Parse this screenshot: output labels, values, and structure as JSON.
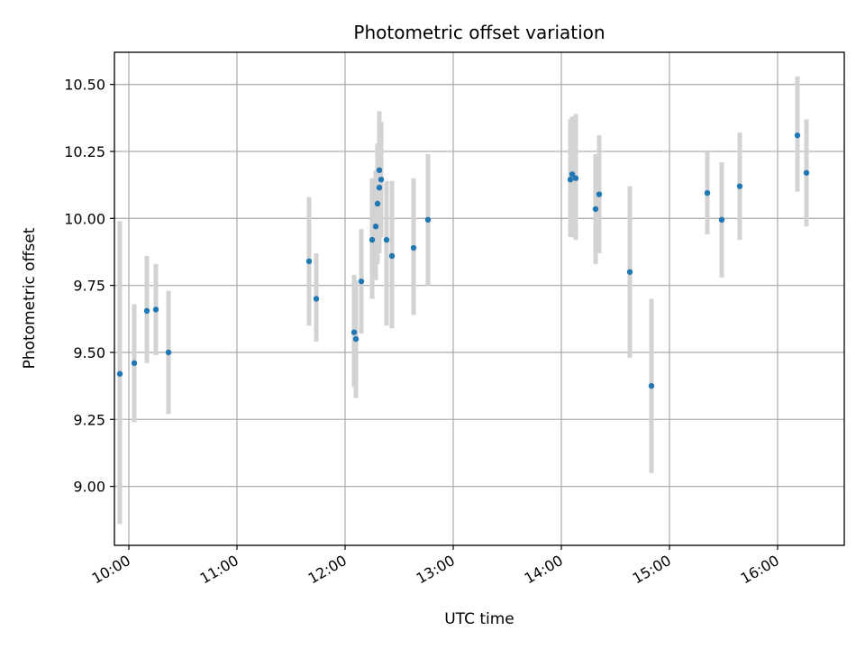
{
  "chart_data": {
    "type": "scatter",
    "title": "Photometric offset variation",
    "xlabel": "UTC time",
    "ylabel": "Photometric offset",
    "x_unit": "UTC time (HH:MM)",
    "xlim": [
      "09:52",
      "16:37"
    ],
    "ylim": [
      8.78,
      10.62
    ],
    "xticks": [
      "10:00",
      "11:00",
      "12:00",
      "13:00",
      "14:00",
      "15:00",
      "16:00"
    ],
    "yticks": [
      "9.00",
      "9.25",
      "9.50",
      "9.75",
      "10.00",
      "10.25",
      "10.50"
    ],
    "grid": true,
    "point_color": "#1f77b4",
    "errorbar_color": "#d3d3d3",
    "points": [
      {
        "x": "09:55",
        "y": 9.42,
        "ylow": 8.86,
        "yhigh": 9.99
      },
      {
        "x": "10:03",
        "y": 9.46,
        "ylow": 9.24,
        "yhigh": 9.68
      },
      {
        "x": "10:10",
        "y": 9.655,
        "ylow": 9.46,
        "yhigh": 9.86
      },
      {
        "x": "10:15",
        "y": 9.66,
        "ylow": 9.49,
        "yhigh": 9.83
      },
      {
        "x": "10:22",
        "y": 9.5,
        "ylow": 9.27,
        "yhigh": 9.73
      },
      {
        "x": "11:40",
        "y": 9.84,
        "ylow": 9.6,
        "yhigh": 10.08
      },
      {
        "x": "11:44",
        "y": 9.7,
        "ylow": 9.54,
        "yhigh": 9.87
      },
      {
        "x": "12:05",
        "y": 9.575,
        "ylow": 9.37,
        "yhigh": 9.79
      },
      {
        "x": "12:06",
        "y": 9.55,
        "ylow": 9.33,
        "yhigh": 9.77
      },
      {
        "x": "12:09",
        "y": 9.765,
        "ylow": 9.57,
        "yhigh": 9.96
      },
      {
        "x": "12:15",
        "y": 9.92,
        "ylow": 9.7,
        "yhigh": 10.15
      },
      {
        "x": "12:17",
        "y": 9.97,
        "ylow": 9.77,
        "yhigh": 10.18
      },
      {
        "x": "12:18",
        "y": 10.055,
        "ylow": 9.83,
        "yhigh": 10.28
      },
      {
        "x": "12:19",
        "y": 10.115,
        "ylow": 9.87,
        "yhigh": 10.36
      },
      {
        "x": "12:19",
        "y": 10.18,
        "ylow": 9.96,
        "yhigh": 10.4
      },
      {
        "x": "12:20",
        "y": 10.145,
        "ylow": 9.93,
        "yhigh": 10.36
      },
      {
        "x": "12:23",
        "y": 9.92,
        "ylow": 9.6,
        "yhigh": 10.14
      },
      {
        "x": "12:26",
        "y": 9.86,
        "ylow": 9.59,
        "yhigh": 10.14
      },
      {
        "x": "12:38",
        "y": 9.89,
        "ylow": 9.64,
        "yhigh": 10.15
      },
      {
        "x": "12:46",
        "y": 9.995,
        "ylow": 9.75,
        "yhigh": 10.24
      },
      {
        "x": "14:05",
        "y": 10.145,
        "ylow": 9.93,
        "yhigh": 10.37
      },
      {
        "x": "14:06",
        "y": 10.165,
        "ylow": 9.93,
        "yhigh": 10.38
      },
      {
        "x": "14:08",
        "y": 10.15,
        "ylow": 9.92,
        "yhigh": 10.39
      },
      {
        "x": "14:19",
        "y": 10.035,
        "ylow": 9.83,
        "yhigh": 10.24
      },
      {
        "x": "14:21",
        "y": 10.09,
        "ylow": 9.87,
        "yhigh": 10.31
      },
      {
        "x": "14:38",
        "y": 9.8,
        "ylow": 9.48,
        "yhigh": 10.12
      },
      {
        "x": "14:50",
        "y": 9.375,
        "ylow": 9.05,
        "yhigh": 9.7
      },
      {
        "x": "15:21",
        "y": 10.095,
        "ylow": 9.94,
        "yhigh": 10.25
      },
      {
        "x": "15:29",
        "y": 9.995,
        "ylow": 9.78,
        "yhigh": 10.21
      },
      {
        "x": "15:39",
        "y": 10.12,
        "ylow": 9.92,
        "yhigh": 10.32
      },
      {
        "x": "16:11",
        "y": 10.31,
        "ylow": 10.1,
        "yhigh": 10.53
      },
      {
        "x": "16:16",
        "y": 10.17,
        "ylow": 9.97,
        "yhigh": 10.37
      }
    ]
  }
}
